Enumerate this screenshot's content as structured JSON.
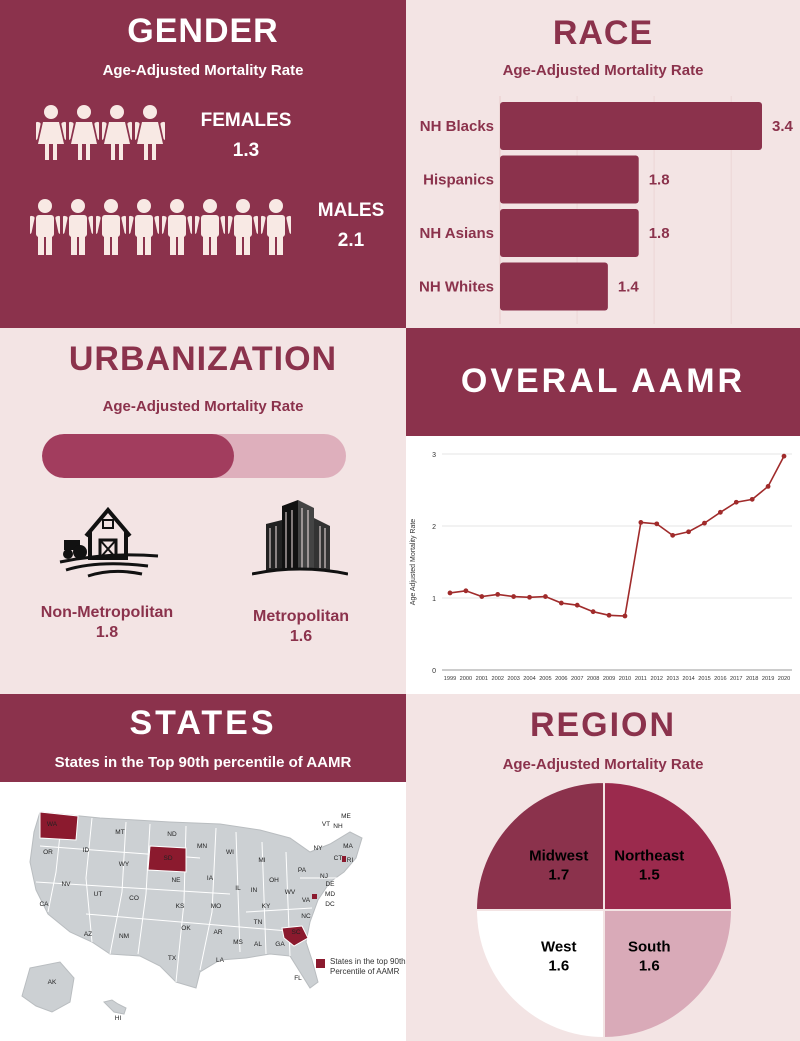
{
  "gender": {
    "title": "GENDER",
    "subtitle": "Age-Adjusted Mortality Rate",
    "females_label": "FEMALES",
    "females_value": "1.3",
    "males_label": "MALES",
    "males_value": "2.1"
  },
  "race": {
    "title": "RACE",
    "subtitle": "Age-Adjusted Mortality Rate"
  },
  "urbanization": {
    "title": "URBANIZATION",
    "subtitle": "Age-Adjusted Mortality Rate",
    "nonmetro_label": "Non-Metropolitan",
    "nonmetro_value": "1.8",
    "metro_label": "Metropolitan",
    "metro_value": "1.6",
    "bar_fraction": 0.63
  },
  "overall": {
    "title": "OVERAL AAMR"
  },
  "states": {
    "title": "STATES",
    "subtitle": "States in the Top 90th percentile of AAMR",
    "legend": "States in the top 90th Percentile of AAMR",
    "highlighted": [
      "WA",
      "SD",
      "SC"
    ],
    "labels": [
      "WA",
      "OR",
      "CA",
      "NV",
      "ID",
      "MT",
      "WY",
      "UT",
      "AZ",
      "NM",
      "CO",
      "ND",
      "SD",
      "NE",
      "KS",
      "OK",
      "TX",
      "MN",
      "IA",
      "MO",
      "AR",
      "LA",
      "WI",
      "IL",
      "MI",
      "IN",
      "OH",
      "KY",
      "TN",
      "MS",
      "AL",
      "GA",
      "FL",
      "SC",
      "NC",
      "VA",
      "WV",
      "PA",
      "NY",
      "VT",
      "NH",
      "ME",
      "MA",
      "RI",
      "CT",
      "NJ",
      "DE",
      "MD",
      "DC",
      "AK",
      "HI"
    ]
  },
  "region": {
    "title": "REGION",
    "subtitle": "Age-Adjusted Mortality Rate"
  },
  "chart_data": [
    {
      "type": "bar",
      "orientation": "horizontal",
      "title": "Age-Adjusted Mortality Rate",
      "categories": [
        "NH Blacks",
        "Hispanics",
        "NH Asians",
        "NH Whites"
      ],
      "values": [
        3.4,
        1.8,
        1.8,
        1.4
      ],
      "xlim": [
        0,
        3.4
      ]
    },
    {
      "type": "line",
      "title": "",
      "ylabel": "Age Adjusted Mortality Rate",
      "xlabel": "",
      "x": [
        "1999",
        "2000",
        "2001",
        "2002",
        "2003",
        "2004",
        "2005",
        "2006",
        "2007",
        "2008",
        "2009",
        "2010",
        "2011",
        "2012",
        "2013",
        "2014",
        "2015",
        "2016",
        "2017",
        "2018",
        "2019",
        "2020"
      ],
      "values": [
        1.07,
        1.1,
        1.02,
        1.05,
        1.02,
        1.01,
        1.02,
        0.93,
        0.9,
        0.81,
        0.76,
        0.75,
        2.05,
        2.03,
        1.87,
        1.92,
        2.04,
        2.19,
        2.33,
        2.37,
        2.55,
        2.97
      ],
      "yticks": [
        "0",
        "1",
        "2",
        "3"
      ],
      "ylim": [
        0,
        3
      ],
      "color": "#a02b2b"
    },
    {
      "type": "pie",
      "title": "Age-Adjusted Mortality Rate",
      "categories": [
        "Northeast",
        "South",
        "West",
        "Midwest"
      ],
      "values": [
        1.5,
        1.6,
        1.6,
        1.7
      ],
      "colors": [
        "#9b2a4d",
        "#d9aab8",
        "#ffffff",
        "#8b324c"
      ],
      "slice_fractions": [
        0.25,
        0.25,
        0.25,
        0.25
      ]
    },
    {
      "type": "bar",
      "title": "Age-Adjusted Mortality Rate",
      "categories": [
        "Non-Metropolitan",
        "Metropolitan"
      ],
      "values": [
        1.8,
        1.6
      ]
    }
  ]
}
